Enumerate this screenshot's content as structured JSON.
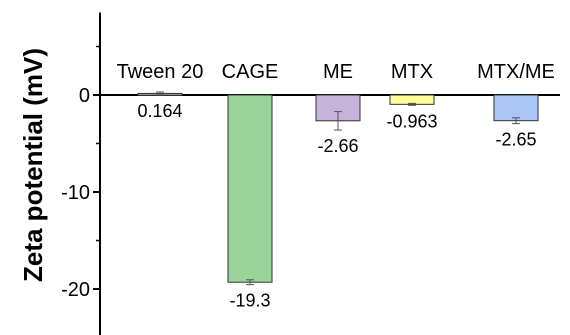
{
  "chart_data": {
    "type": "bar",
    "title": "",
    "xlabel": "",
    "ylabel": "Zeta potential (mV)",
    "ylim": [
      -24,
      8.5
    ],
    "yticks": [
      0,
      -10,
      -20
    ],
    "ytick_labels": [
      "0",
      "-10",
      "-20"
    ],
    "grid": false,
    "categories": [
      "Tween 20",
      "CAGE",
      "ME",
      "MTX",
      "MTX/ME"
    ],
    "values": [
      0.164,
      -19.3,
      -2.66,
      -0.963,
      -2.65
    ],
    "value_labels": [
      "0.164",
      "-19.3",
      "-2.66",
      "-0.963",
      "-2.65"
    ],
    "errors": [
      0.15,
      0.25,
      0.95,
      0.1,
      0.3
    ],
    "colors": [
      "#9e9e9e",
      "#9ad49a",
      "#c5b3d9",
      "#fdfd9a",
      "#a9c4f5"
    ]
  }
}
